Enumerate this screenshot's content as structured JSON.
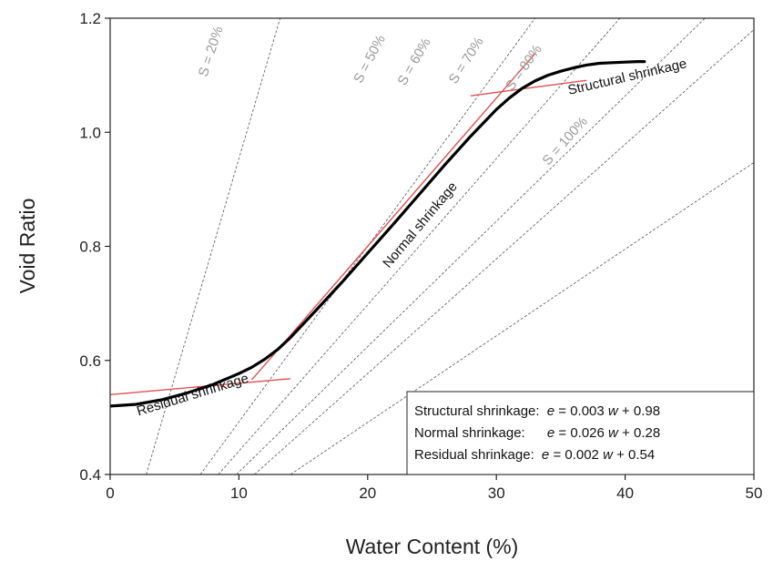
{
  "chart_data": {
    "type": "line",
    "title": "",
    "xlabel": "Water Content (%)",
    "ylabel": "Void Ratio",
    "xlim": [
      0,
      50
    ],
    "ylim": [
      0.4,
      1.2
    ],
    "x_ticks": [
      "0",
      "10",
      "20",
      "30",
      "40",
      "50"
    ],
    "y_ticks": [
      "0.4",
      "0.6",
      "0.8",
      "1.0",
      "1.2"
    ],
    "grid": false,
    "series": [
      {
        "name": "",
        "color": "#000000",
        "x": [
          0,
          2,
          4,
          6,
          8,
          10,
          11,
          12,
          13,
          14,
          16,
          18,
          20,
          22,
          24,
          26,
          28,
          30,
          31,
          32,
          33,
          34,
          35,
          36,
          37,
          38,
          39,
          40,
          41,
          41.5
        ],
        "y": [
          0.52,
          0.523,
          0.531,
          0.543,
          0.558,
          0.577,
          0.588,
          0.602,
          0.619,
          0.64,
          0.688,
          0.737,
          0.788,
          0.839,
          0.891,
          0.943,
          0.993,
          1.04,
          1.06,
          1.077,
          1.09,
          1.1,
          1.107,
          1.113,
          1.118,
          1.121,
          1.122,
          1.123,
          1.124,
          1.124
        ]
      }
    ],
    "saturation_lines": [
      {
        "label": "S = 20%",
        "x": [
          2.8,
          13.2
        ],
        "y": [
          0.4,
          1.2
        ]
      },
      {
        "label": "S = 50%",
        "x": [
          7.0,
          33.0
        ],
        "y": [
          0.4,
          1.2
        ]
      },
      {
        "label": "S = 60%",
        "x": [
          8.4,
          39.6
        ],
        "y": [
          0.4,
          1.2
        ]
      },
      {
        "label": "S = 70%",
        "x": [
          9.8,
          46.2
        ],
        "y": [
          0.4,
          1.2
        ]
      },
      {
        "label": "S = 80%",
        "x": [
          11.2,
          50.0
        ],
        "y": [
          0.4,
          1.18
        ]
      },
      {
        "label": "S = 100%",
        "x": [
          14.0,
          50.0
        ],
        "y": [
          0.4,
          0.947
        ]
      }
    ],
    "fit_lines": [
      {
        "name": "Structural shrinkage",
        "color": "#e05050",
        "x": [
          28,
          37
        ],
        "y": [
          1.064,
          1.091
        ]
      },
      {
        "name": "Normal shrinkage",
        "color": "#e05050",
        "x": [
          11,
          33
        ],
        "y": [
          0.566,
          1.138
        ]
      },
      {
        "name": "Residual shrinkage",
        "color": "#e05050",
        "x": [
          0,
          14
        ],
        "y": [
          0.54,
          0.568
        ]
      }
    ],
    "region_labels": [
      "Structural shrinkage",
      "Normal shrinkage",
      "Residual shrinkage"
    ],
    "legend_box": {
      "position": "bottom-right",
      "rows": [
        {
          "name": "Structural shrinkage:",
          "eq_var": "e",
          "eq_mid": " = 0.003",
          "eq_var2": "w",
          "eq_tail": "+ 0.98"
        },
        {
          "name": "Normal shrinkage:",
          "eq_var": "e",
          "eq_mid": " = 0.026",
          "eq_var2": "w",
          "eq_tail": " + 0.28"
        },
        {
          "name": "Residual shrinkage:",
          "eq_var": "e",
          "eq_mid": " = 0.002",
          "eq_var2": "w",
          "eq_tail": " + 0.54"
        }
      ]
    }
  }
}
